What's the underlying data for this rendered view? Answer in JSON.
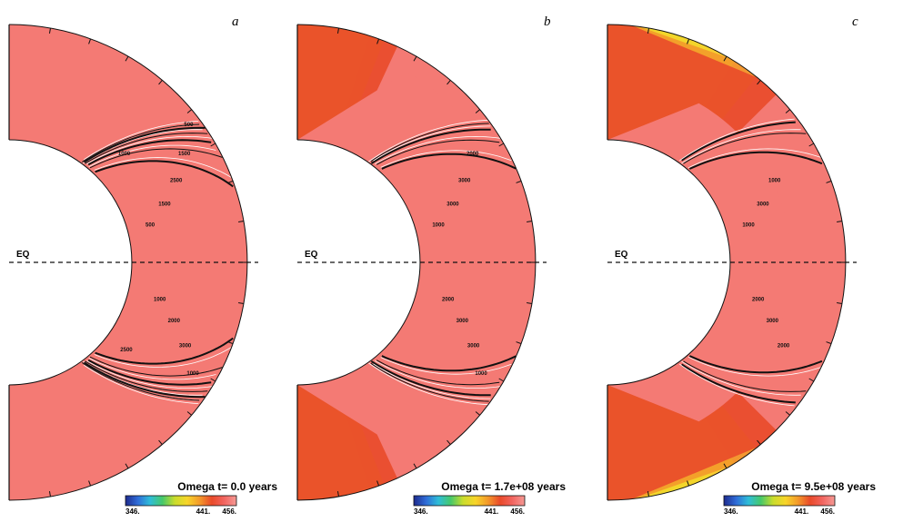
{
  "colors": {
    "shell": "#f47a74",
    "grad": [
      "#1e2a8c",
      "#2f6cd8",
      "#2fbdd8",
      "#46c86a",
      "#c9dc2c",
      "#f7d52a",
      "#f39a2a",
      "#e94a2a",
      "#f26560",
      "#f59a95"
    ]
  },
  "equator_label": "EQ",
  "panels": [
    {
      "letter": "a",
      "caption": "Omega t= 0.0 years",
      "colorbar": {
        "min": "346.",
        "mid": "441.",
        "max": "456."
      },
      "contours": [
        "500",
        "1000",
        "1500",
        "2000",
        "2500",
        "3000",
        "1500",
        "1000",
        "500",
        "2500",
        "1000"
      ]
    },
    {
      "letter": "b",
      "caption": "Omega t= 1.7e+08 years",
      "colorbar": {
        "min": "346.",
        "mid": "441.",
        "max": "456."
      },
      "contours": [
        "1000",
        "2000",
        "3000",
        "3000",
        "3000",
        "3000",
        "2000",
        "1000"
      ]
    },
    {
      "letter": "c",
      "caption": "Omega t= 9.5e+08 years",
      "colorbar": {
        "min": "346.",
        "mid": "441.",
        "max": "456."
      },
      "contours": [
        "1000",
        "2000",
        "3000",
        "3000",
        "1000",
        "2000"
      ]
    }
  ]
}
